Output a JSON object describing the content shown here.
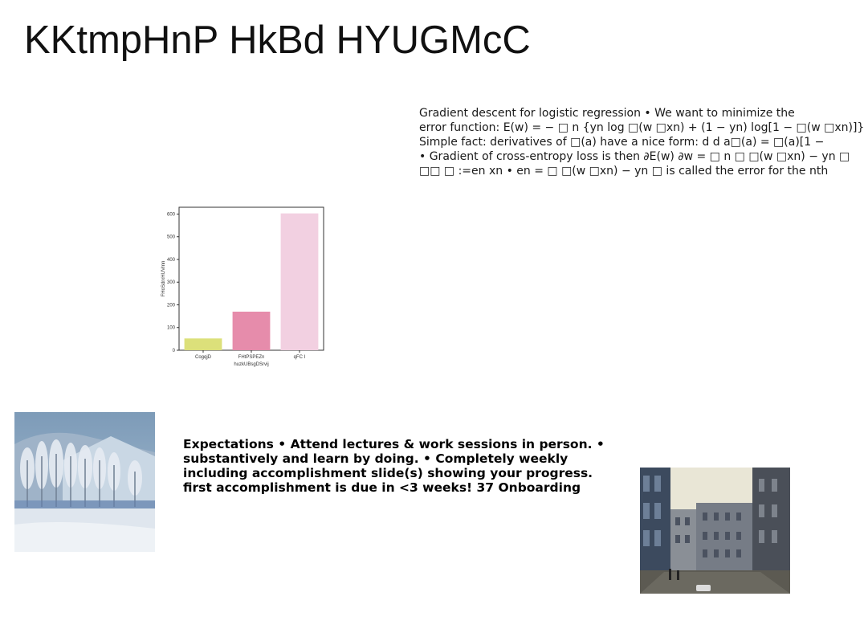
{
  "slide": {
    "title": "KKtmpHnP HkBd HYUGMcC"
  },
  "math_text": {
    "lines": [
      "Gradient descent for logistic regression • We want to minimize the",
      "error function: E(w) = − □ n {yn log □(w □xn) + (1 − yn) log[1 − □(w □xn)]}",
      "Simple fact: derivatives of □(a) have a nice form: d d a□(a) = □(a)[1 −",
      "• Gradient of cross-entropy loss is then ∂E(w) ∂w = □ n □ □(w □xn) − yn □",
      "□□ □ :=en xn • en = □ □(w □xn) − yn □ is called the error for the nth"
    ]
  },
  "expectations": {
    "lines": [
      "Expectations • Attend lectures & work sessions in person. •",
      "substantively and learn by doing. • Completely weekly",
      "including accomplishment slide(s) showing your progress.",
      "first accomplishment is due in <3 weeks! 37 Onboarding"
    ]
  },
  "images": {
    "snow_painting": "snowy-landscape-painting",
    "canal_photo": "city-canal-photo"
  },
  "chart_data": {
    "type": "bar",
    "categories": [
      "CogqjD",
      "FHtPSPEZn",
      "qFC I"
    ],
    "values": [
      52,
      170,
      603
    ],
    "colors": [
      "#dce07a",
      "#e68cab",
      "#f2d0e1"
    ],
    "xlabel": "huzkUBsgDSrvij",
    "ylabel": "FHoSdrxHUVrnn",
    "ylim": [
      0,
      630
    ],
    "yticks": [
      0,
      100,
      200,
      300,
      400,
      500,
      600
    ],
    "grid": false
  }
}
